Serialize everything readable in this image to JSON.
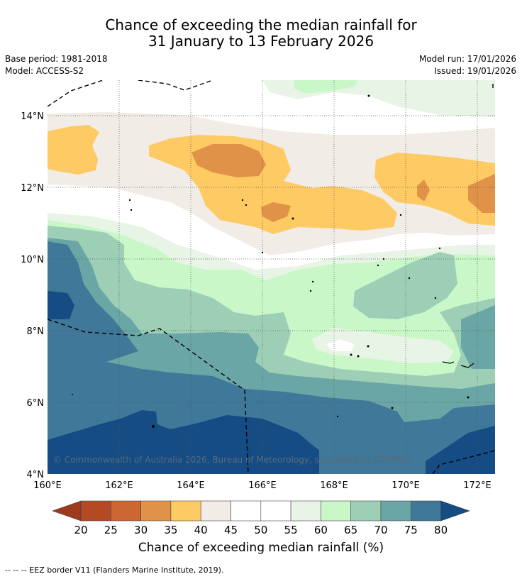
{
  "title": {
    "line1": "Chance of exceeding the median rainfall for",
    "line2": "31 January to 13 February 2026"
  },
  "meta": {
    "base_period": "Base period: 1981-2018",
    "model": "Model: ACCESS-S2",
    "model_run": "Model run: 17/01/2026",
    "issued": "Issued: 19/01/2026"
  },
  "axes": {
    "lat_labels": [
      "14°N",
      "12°N",
      "10°N",
      "8°N",
      "6°N",
      "4°N"
    ],
    "lon_labels": [
      "160°E",
      "162°E",
      "164°E",
      "166°E",
      "168°E",
      "170°E",
      "172°E"
    ]
  },
  "map_extent": {
    "lon_min": 160,
    "lon_max": 172.5,
    "lat_min": 4,
    "lat_max": 15
  },
  "copyright": "© Commonwealth of Australia 2026, Bureau of Meteorology, supported by COSPPac",
  "colorbar": {
    "title": "Chance of exceeding median rainfall (%)",
    "ticks": [
      "20",
      "25",
      "30",
      "35",
      "40",
      "45",
      "50",
      "55",
      "60",
      "65",
      "70",
      "75",
      "80"
    ],
    "colors": {
      "below20": "#9e3a1e",
      "b20_25": "#b34a24",
      "b25_30": "#cc6633",
      "b30_35": "#e09248",
      "b35_40": "#fdca64",
      "b40_45": "#f2ece6",
      "b45_50": "#ffffff",
      "b50_55": "#ffffff",
      "b55_60": "#e8f4e6",
      "b60_65": "#caf7c8",
      "b65_70": "#9dcfb6",
      "b70_75": "#6ba6a6",
      "b75_80": "#3f7898",
      "above80": "#154c84"
    }
  },
  "footnote": "--  --  -- EEZ border V11 (Flanders Marine Institute, 2019)."
}
